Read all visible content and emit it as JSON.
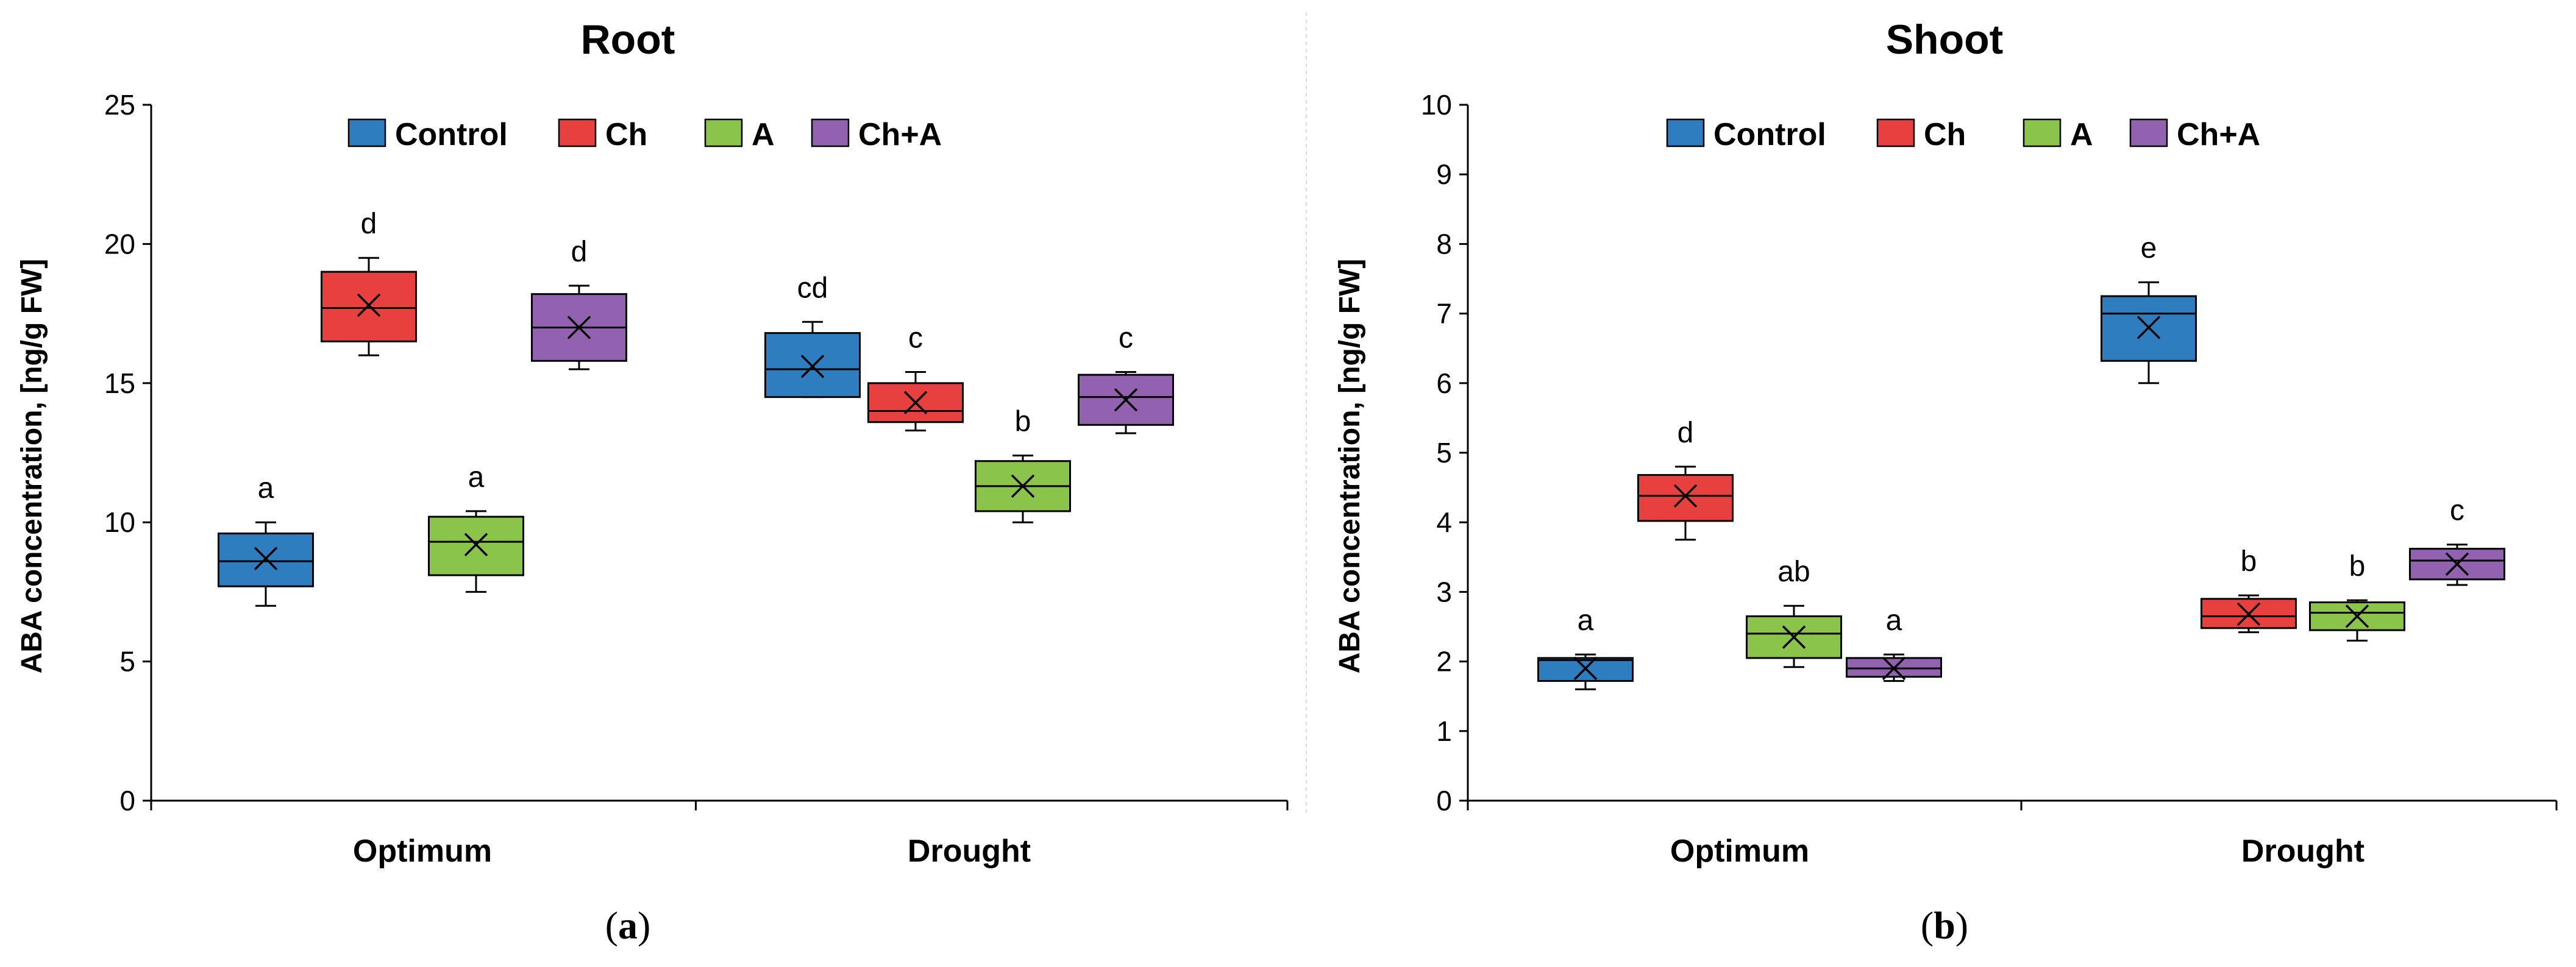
{
  "colors": {
    "Control": "#2e7ebf",
    "Ch": "#e8403f",
    "A": "#8bc44a",
    "Ch+A": "#9262b0"
  },
  "chart_data": [
    {
      "type": "boxplot",
      "title": "Root",
      "panel_label": "(a)",
      "panel_letter": "a",
      "ylabel": "ABA concentration, [ng/g FW]",
      "xlabel": "",
      "ylim": [
        0,
        25
      ],
      "ytick_step": 5,
      "categories": [
        "Optimum",
        "Drought"
      ],
      "legend": [
        "Control",
        "Ch",
        "A",
        "Ch+A"
      ],
      "groups": [
        {
          "category": "Optimum",
          "boxes": [
            {
              "series": "Control",
              "min": 7.0,
              "q1": 7.7,
              "median": 8.6,
              "q3": 9.6,
              "max": 10.0,
              "mean": 8.7,
              "letter": "a"
            },
            {
              "series": "Ch",
              "min": 16.0,
              "q1": 16.5,
              "median": 17.7,
              "q3": 19.0,
              "max": 19.5,
              "mean": 17.8,
              "letter": "d"
            },
            {
              "series": "A",
              "min": 7.5,
              "q1": 8.1,
              "median": 9.3,
              "q3": 10.2,
              "max": 10.4,
              "mean": 9.2,
              "letter": "a"
            },
            {
              "series": "Ch+A",
              "min": 15.5,
              "q1": 15.8,
              "median": 17.0,
              "q3": 18.2,
              "max": 18.5,
              "mean": 17.0,
              "letter": "d"
            }
          ]
        },
        {
          "category": "Drought",
          "boxes": [
            {
              "series": "Control",
              "min": 14.5,
              "q1": 14.5,
              "median": 15.5,
              "q3": 16.8,
              "max": 17.2,
              "mean": 15.6,
              "letter": "cd"
            },
            {
              "series": "Ch",
              "min": 13.3,
              "q1": 13.6,
              "median": 14.0,
              "q3": 15.0,
              "max": 15.4,
              "mean": 14.3,
              "letter": "c"
            },
            {
              "series": "A",
              "min": 10.0,
              "q1": 10.4,
              "median": 11.3,
              "q3": 12.2,
              "max": 12.4,
              "mean": 11.3,
              "letter": "b"
            },
            {
              "series": "Ch+A",
              "min": 13.2,
              "q1": 13.5,
              "median": 14.5,
              "q3": 15.3,
              "max": 15.4,
              "mean": 14.4,
              "letter": "c"
            }
          ]
        }
      ]
    },
    {
      "type": "boxplot",
      "title": "Shoot",
      "panel_label": "(b)",
      "panel_letter": "b",
      "ylabel": "ABA concentration, [ng/g FW]",
      "xlabel": "",
      "ylim": [
        0,
        10
      ],
      "ytick_step": 1,
      "categories": [
        "Optimum",
        "Drought"
      ],
      "legend": [
        "Control",
        "Ch",
        "A",
        "Ch+A"
      ],
      "groups": [
        {
          "category": "Optimum",
          "boxes": [
            {
              "series": "Control",
              "min": 1.6,
              "q1": 1.72,
              "median": 2.02,
              "q3": 2.05,
              "max": 2.1,
              "mean": 1.9,
              "letter": "a"
            },
            {
              "series": "Ch",
              "min": 3.75,
              "q1": 4.02,
              "median": 4.38,
              "q3": 4.68,
              "max": 4.8,
              "mean": 4.38,
              "letter": "d"
            },
            {
              "series": "A",
              "min": 1.92,
              "q1": 2.05,
              "median": 2.4,
              "q3": 2.65,
              "max": 2.8,
              "mean": 2.35,
              "letter": "ab"
            },
            {
              "series": "Ch+A",
              "min": 1.72,
              "q1": 1.78,
              "median": 1.9,
              "q3": 2.05,
              "max": 2.1,
              "mean": 1.9,
              "letter": "a"
            }
          ]
        },
        {
          "category": "Drought",
          "boxes": [
            {
              "series": "Control",
              "min": 6.0,
              "q1": 6.32,
              "median": 7.0,
              "q3": 7.25,
              "max": 7.45,
              "mean": 6.8,
              "letter": "e"
            },
            {
              "series": "Ch",
              "min": 2.42,
              "q1": 2.48,
              "median": 2.65,
              "q3": 2.9,
              "max": 2.95,
              "mean": 2.68,
              "letter": "b"
            },
            {
              "series": "A",
              "min": 2.3,
              "q1": 2.45,
              "median": 2.7,
              "q3": 2.85,
              "max": 2.88,
              "mean": 2.65,
              "letter": "b"
            },
            {
              "series": "Ch+A",
              "min": 3.1,
              "q1": 3.18,
              "median": 3.45,
              "q3": 3.62,
              "max": 3.68,
              "mean": 3.4,
              "letter": "c"
            }
          ]
        }
      ]
    }
  ]
}
